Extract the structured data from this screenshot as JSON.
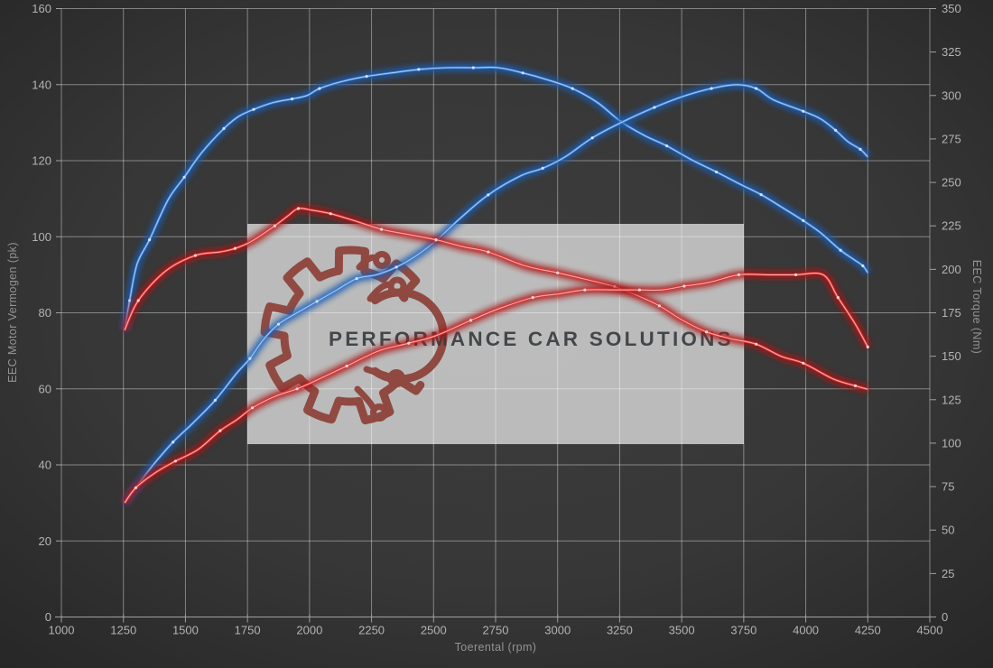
{
  "watermark": {
    "brand": "PERFORMANCE CAR SOLUTIONS",
    "panel_color": "#dcdcdc",
    "panel_opacity": 0.8,
    "logo_color": "#8a3a31",
    "text_color": "#3a3e41"
  },
  "colors": {
    "background_center": "#3d3d3d",
    "background_mid": "#373737",
    "background_edge": "#262626",
    "grid": "rgba(255,255,255,0.40)",
    "axis": "#a0a0a0",
    "tick_label": "#b3b3b3",
    "axis_title": "#939393",
    "blue_glow": "#1d5cb0",
    "blue_main": "#3f7fd2",
    "blue_core": "#a9cdf2",
    "blue_dot": "#d6e9ff",
    "red_glow": "#a81414",
    "red_main": "#e03030",
    "red_core": "#ffb0b0",
    "red_dot": "#ffdede"
  },
  "chart_data": {
    "type": "line",
    "title": "",
    "xlabel": "Toerental (rpm)",
    "ylabel_left": "EEC Motor Vermogen (pk)",
    "ylabel_right": "EEC Torque (Nm)",
    "x_range": [
      1000,
      4500
    ],
    "x_tick_step": 250,
    "y_left_range": [
      0,
      160
    ],
    "y_left_tick_step": 20,
    "y_right_range": [
      0,
      350
    ],
    "y_right_tick_step": 25,
    "grid": true,
    "legend_position": "none",
    "series": [
      {
        "name": "blue-torque",
        "axis": "right",
        "unit": "Nm",
        "color_key": "blue",
        "points": [
          [
            1255,
            165
          ],
          [
            1275,
            182
          ],
          [
            1305,
            203
          ],
          [
            1355,
            217
          ],
          [
            1430,
            240
          ],
          [
            1495,
            253
          ],
          [
            1565,
            267
          ],
          [
            1655,
            281
          ],
          [
            1715,
            288
          ],
          [
            1775,
            292
          ],
          [
            1855,
            296
          ],
          [
            1930,
            298
          ],
          [
            1990,
            300
          ],
          [
            2040,
            304
          ],
          [
            2130,
            308
          ],
          [
            2230,
            311
          ],
          [
            2330,
            313
          ],
          [
            2440,
            315
          ],
          [
            2550,
            316
          ],
          [
            2660,
            316
          ],
          [
            2760,
            316
          ],
          [
            2860,
            313
          ],
          [
            2960,
            309
          ],
          [
            3060,
            304
          ],
          [
            3160,
            296
          ],
          [
            3255,
            285
          ],
          [
            3350,
            277
          ],
          [
            3440,
            271
          ],
          [
            3540,
            263
          ],
          [
            3640,
            256
          ],
          [
            3735,
            249
          ],
          [
            3820,
            243
          ],
          [
            3900,
            236
          ],
          [
            3990,
            228
          ],
          [
            4060,
            221
          ],
          [
            4140,
            211
          ],
          [
            4190,
            206
          ],
          [
            4230,
            202
          ],
          [
            4250,
            198
          ]
        ]
      },
      {
        "name": "blue-power",
        "axis": "left",
        "unit": "pk",
        "color_key": "blue",
        "points": [
          [
            1255,
            30
          ],
          [
            1300,
            34
          ],
          [
            1370,
            40
          ],
          [
            1450,
            46
          ],
          [
            1530,
            51
          ],
          [
            1620,
            57
          ],
          [
            1705,
            64
          ],
          [
            1760,
            68
          ],
          [
            1815,
            73
          ],
          [
            1875,
            77
          ],
          [
            1950,
            80
          ],
          [
            2030,
            83
          ],
          [
            2110,
            86
          ],
          [
            2190,
            89
          ],
          [
            2270,
            90
          ],
          [
            2350,
            92
          ],
          [
            2430,
            95
          ],
          [
            2510,
            99
          ],
          [
            2610,
            105
          ],
          [
            2720,
            111
          ],
          [
            2850,
            116
          ],
          [
            2940,
            118
          ],
          [
            3030,
            121
          ],
          [
            3140,
            126
          ],
          [
            3255,
            130
          ],
          [
            3390,
            134
          ],
          [
            3510,
            137
          ],
          [
            3620,
            139
          ],
          [
            3720,
            140
          ],
          [
            3800,
            139
          ],
          [
            3870,
            136
          ],
          [
            3990,
            133
          ],
          [
            4060,
            131
          ],
          [
            4120,
            128
          ],
          [
            4170,
            125
          ],
          [
            4220,
            123
          ],
          [
            4250,
            121
          ]
        ]
      },
      {
        "name": "red-torque",
        "axis": "right",
        "unit": "Nm",
        "color_key": "red",
        "points": [
          [
            1255,
            165
          ],
          [
            1310,
            182
          ],
          [
            1420,
            199
          ],
          [
            1540,
            208
          ],
          [
            1640,
            210
          ],
          [
            1700,
            212
          ],
          [
            1765,
            216
          ],
          [
            1860,
            225
          ],
          [
            1915,
            231
          ],
          [
            1955,
            235
          ],
          [
            2010,
            234
          ],
          [
            2085,
            232
          ],
          [
            2180,
            228
          ],
          [
            2290,
            223
          ],
          [
            2400,
            220
          ],
          [
            2510,
            217
          ],
          [
            2620,
            213
          ],
          [
            2720,
            210
          ],
          [
            2870,
            202
          ],
          [
            3000,
            198
          ],
          [
            3120,
            194
          ],
          [
            3230,
            190
          ],
          [
            3320,
            185
          ],
          [
            3410,
            179
          ],
          [
            3500,
            171
          ],
          [
            3600,
            164
          ],
          [
            3700,
            160
          ],
          [
            3800,
            157
          ],
          [
            3900,
            150
          ],
          [
            3990,
            146
          ],
          [
            4110,
            137
          ],
          [
            4200,
            133
          ],
          [
            4250,
            131
          ]
        ]
      },
      {
        "name": "red-power",
        "axis": "left",
        "unit": "pk",
        "color_key": "red",
        "points": [
          [
            1255,
            30
          ],
          [
            1300,
            34
          ],
          [
            1380,
            38
          ],
          [
            1460,
            41
          ],
          [
            1550,
            44
          ],
          [
            1640,
            49
          ],
          [
            1710,
            52
          ],
          [
            1770,
            55
          ],
          [
            1860,
            58
          ],
          [
            1950,
            60
          ],
          [
            2020,
            62
          ],
          [
            2150,
            66
          ],
          [
            2280,
            70
          ],
          [
            2400,
            72
          ],
          [
            2510,
            74
          ],
          [
            2650,
            78
          ],
          [
            2760,
            81
          ],
          [
            2900,
            84
          ],
          [
            3010,
            85
          ],
          [
            3110,
            86
          ],
          [
            3240,
            86
          ],
          [
            3330,
            86
          ],
          [
            3420,
            86
          ],
          [
            3510,
            87
          ],
          [
            3610,
            88
          ],
          [
            3730,
            90
          ],
          [
            3850,
            90
          ],
          [
            3960,
            90
          ],
          [
            4070,
            90
          ],
          [
            4130,
            84
          ],
          [
            4200,
            77
          ],
          [
            4250,
            71
          ]
        ]
      }
    ]
  }
}
